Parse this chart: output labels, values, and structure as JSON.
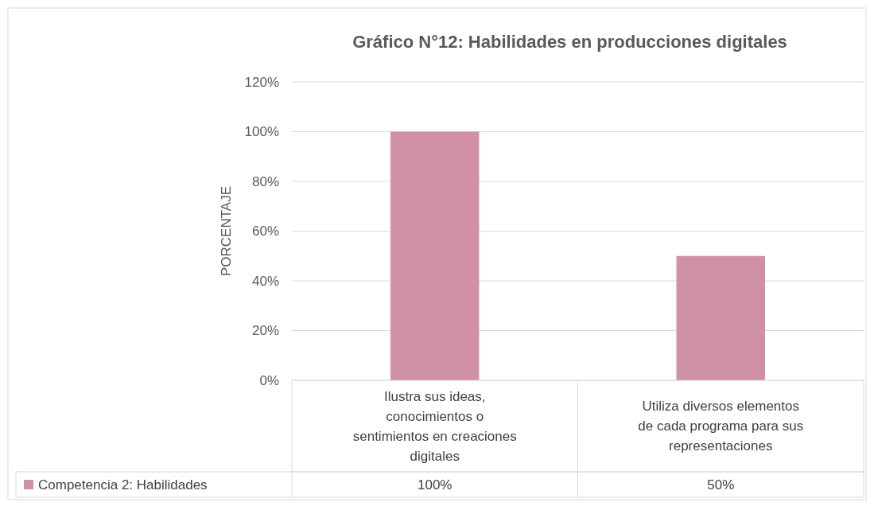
{
  "chart_data": {
    "type": "bar",
    "title": "Gráfico N°12: Habilidades en producciones digitales",
    "ylabel": "PORCENTAJE",
    "categories": [
      "Ilustra sus ideas, conocimientos o sentimientos en creaciones digitales",
      "Utiliza diversos elementos de cada programa para sus representaciones"
    ],
    "series": [
      {
        "name": "Competencia 2: Habilidades",
        "color": "#d090a6",
        "values": [
          100,
          50
        ],
        "value_labels": [
          "100%",
          "50%"
        ]
      }
    ],
    "ylim": [
      0,
      120
    ],
    "yticks": [
      {
        "value": 0,
        "label": "0%"
      },
      {
        "value": 20,
        "label": "20%"
      },
      {
        "value": 40,
        "label": "40%"
      },
      {
        "value": 60,
        "label": "60%"
      },
      {
        "value": 80,
        "label": "80%"
      },
      {
        "value": 100,
        "label": "100%"
      },
      {
        "value": 120,
        "label": "120%"
      }
    ],
    "grid": "y",
    "legend": "bottom left"
  }
}
